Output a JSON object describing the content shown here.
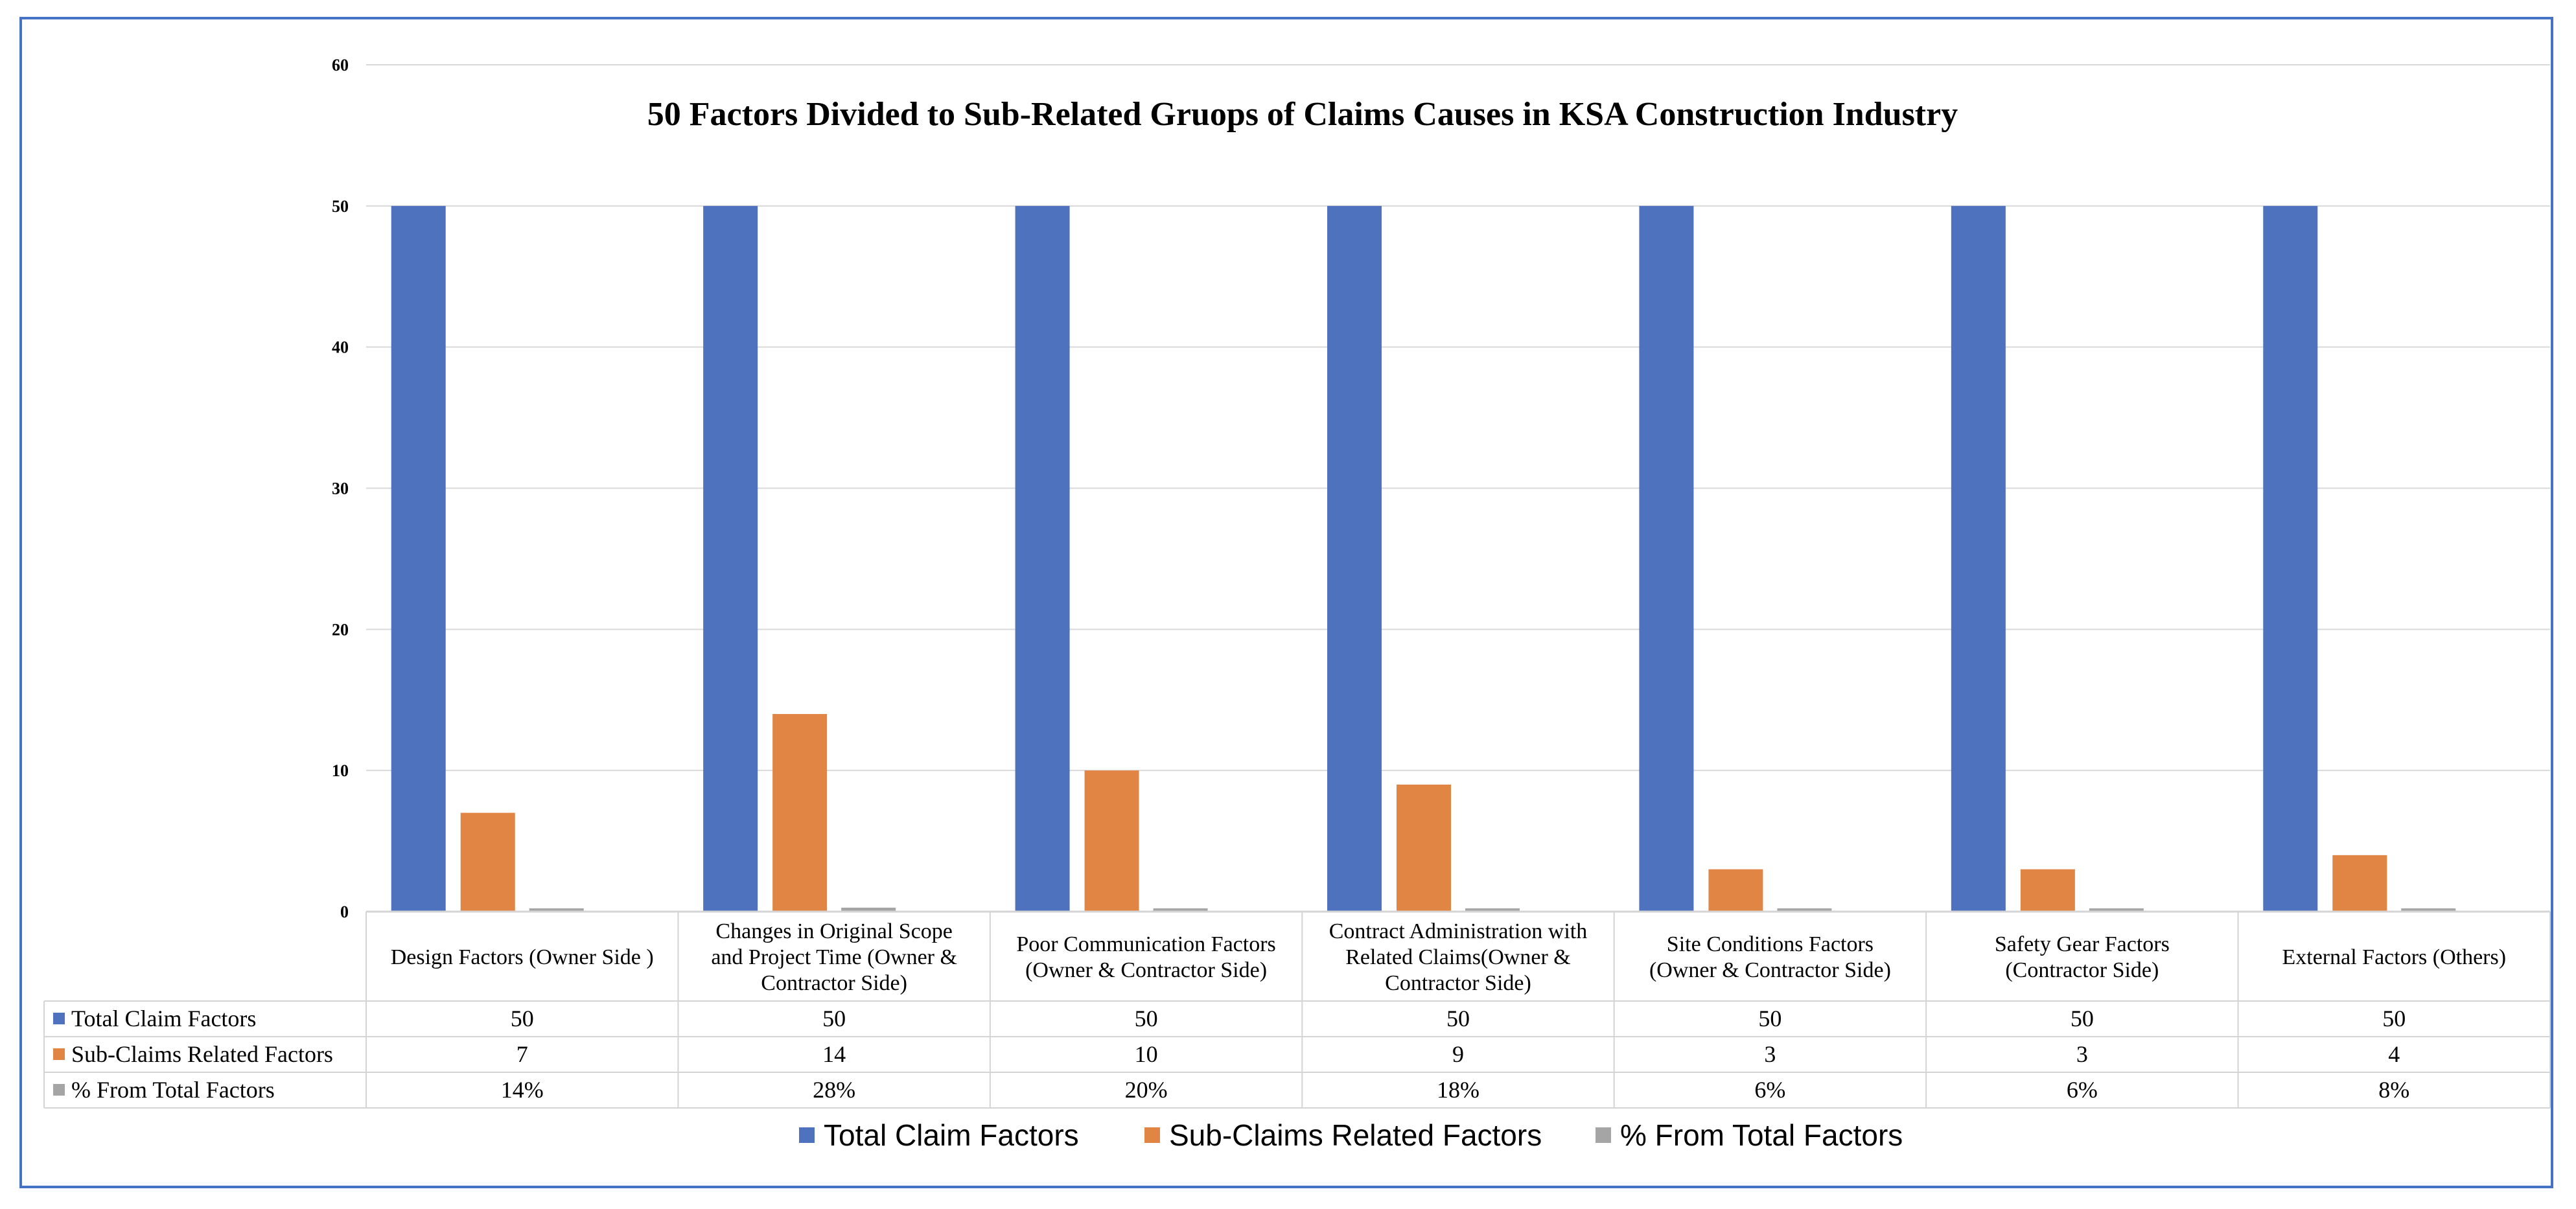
{
  "colors": {
    "total": "#4f72be",
    "sub": "#e18544",
    "percent": "#a5a5a5",
    "grid": "#d9d9d9",
    "border": "#4472c4"
  },
  "chart_data": {
    "type": "bar",
    "title": "50  Factors Divided to  Sub-Related Gruops of Claims Causes in KSA Construction Industry",
    "ylim": [
      0,
      60
    ],
    "yticks": [
      "0",
      "10",
      "20",
      "30",
      "40",
      "50",
      "60"
    ],
    "categories": [
      [
        "Design Factors (Owner Side )"
      ],
      [
        "Changes in Original Scope",
        "and Project Time (Owner &",
        "Contractor Side)"
      ],
      [
        "Poor Communication Factors",
        "(Owner & Contractor Side)"
      ],
      [
        "Contract Administration with",
        "Related Claims(Owner &",
        "Contractor Side)"
      ],
      [
        "Site Conditions Factors",
        "(Owner & Contractor Side)"
      ],
      [
        "Safety Gear Factors",
        "(Contractor Side)"
      ],
      [
        "External Factors (Others)"
      ]
    ],
    "series": [
      {
        "name": "Total Claim Factors",
        "values": [
          50,
          50,
          50,
          50,
          50,
          50,
          50
        ],
        "labels": [
          "50",
          "50",
          "50",
          "50",
          "50",
          "50",
          "50"
        ]
      },
      {
        "name": "Sub-Claims Related Factors",
        "values": [
          7,
          14,
          10,
          9,
          3,
          3,
          4
        ],
        "labels": [
          "7",
          "14",
          "10",
          "9",
          "3",
          "3",
          "4"
        ]
      },
      {
        "name": "% From Total Factors",
        "values": [
          0.14,
          0.28,
          0.2,
          0.18,
          0.06,
          0.06,
          0.08
        ],
        "labels": [
          "14%",
          "28%",
          "20%",
          "18%",
          "6%",
          "6%",
          "8%"
        ]
      }
    ]
  }
}
